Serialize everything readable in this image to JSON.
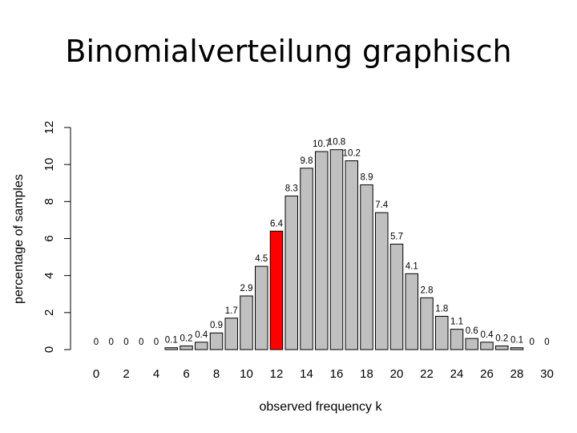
{
  "slide": {
    "title": "Binomialverteilung graphisch"
  },
  "chart_data": {
    "type": "bar",
    "title": "",
    "xlabel": "observed frequency k",
    "ylabel": "percentage of samples",
    "ylim": [
      0,
      12
    ],
    "yticks": [
      "0",
      "2",
      "4",
      "6",
      "8",
      "10",
      "12"
    ],
    "xticks": [
      "0",
      "2",
      "4",
      "6",
      "8",
      "10",
      "12",
      "14",
      "16",
      "18",
      "20",
      "22",
      "24",
      "26",
      "28",
      "30"
    ],
    "categories": [
      0,
      1,
      2,
      3,
      4,
      5,
      6,
      7,
      8,
      9,
      10,
      11,
      12,
      13,
      14,
      15,
      16,
      17,
      18,
      19,
      20,
      21,
      22,
      23,
      24,
      25,
      26,
      27,
      28,
      29,
      30
    ],
    "values": [
      0,
      0,
      0,
      0,
      0,
      0.1,
      0.2,
      0.4,
      0.9,
      1.7,
      2.9,
      4.5,
      6.4,
      8.3,
      9.8,
      10.7,
      10.8,
      10.2,
      8.9,
      7.4,
      5.7,
      4.1,
      2.8,
      1.8,
      1.1,
      0.6,
      0.4,
      0.2,
      0.1,
      0,
      0
    ],
    "labels": [
      "0",
      "0",
      "0",
      "0",
      "0",
      "0.1",
      "0.2",
      "0.4",
      "0.9",
      "1.7",
      "2.9",
      "4.5",
      "6.4",
      "8.3",
      "9.8",
      "10.7",
      "10.8",
      "10.2",
      "8.9",
      "7.4",
      "5.7",
      "4.1",
      "2.8",
      "1.8",
      "1.1",
      "0.6",
      "0.4",
      "0.2",
      "0.1",
      "0",
      "0"
    ],
    "highlight_index": 12,
    "colors": {
      "bar": "#c0c0c0",
      "highlight": "#ff0000",
      "stroke": "#000000"
    },
    "grid": false,
    "legend": "none"
  }
}
